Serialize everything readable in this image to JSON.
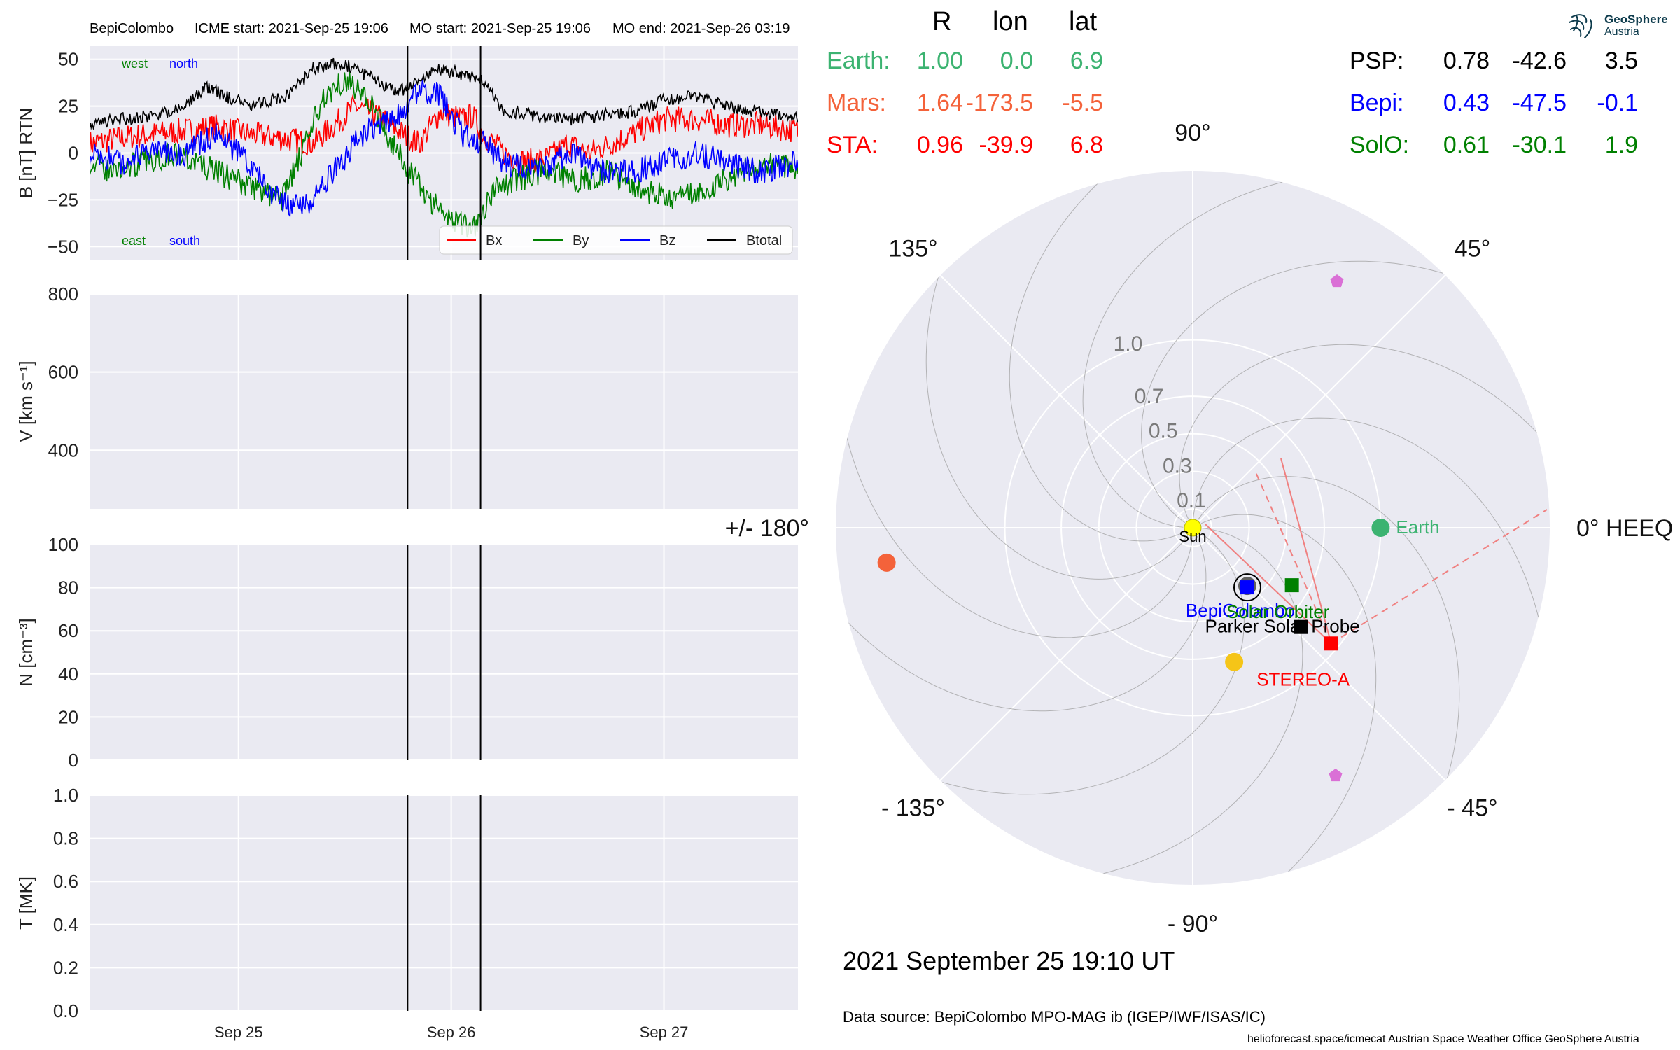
{
  "header": {
    "spacecraft": "BepiColombo",
    "icme_start": "ICME start: 2021-Sep-25 19:06",
    "mo_start": "MO start: 2021-Sep-25 19:06",
    "mo_end": "MO end: 2021-Sep-26 03:19"
  },
  "logo": {
    "line1": "GeoSphere",
    "line2": "Austria"
  },
  "position_table": {
    "headers": [
      "R",
      "lon",
      "lat"
    ],
    "left_rows": [
      {
        "name": "Earth:",
        "R": "1.00",
        "lon": "0.0",
        "lat": "6.9",
        "color": "#3cb371"
      },
      {
        "name": "Mars:",
        "R": "1.64",
        "lon": "-173.5",
        "lat": "-5.5",
        "color": "#f4623a"
      },
      {
        "name": "STA:",
        "R": "0.96",
        "lon": "-39.9",
        "lat": "6.8",
        "color": "#ff0000"
      }
    ],
    "right_rows": [
      {
        "name": "PSP:",
        "R": "0.78",
        "lon": "-42.6",
        "lat": "3.5",
        "color": "#000000"
      },
      {
        "name": "Bepi:",
        "R": "0.43",
        "lon": "-47.5",
        "lat": "-0.1",
        "color": "#0000ff"
      },
      {
        "name": "SolO:",
        "R": "0.61",
        "lon": "-30.1",
        "lat": "1.9",
        "color": "#008000"
      }
    ]
  },
  "timestamp": "2021 September 25  19:10 UT",
  "data_source": "Data source: BepiColombo MPO-MAG ib (IGEP/IWF/ISAS/IC)",
  "footer": {
    "credits": "helioforecast.space/icmecat   Austrian Space Weather Office   GeoSphere Austria"
  },
  "chart_data": [
    {
      "type": "line",
      "ylabel": "B [nT] RTN",
      "ylim": [
        -57,
        57
      ],
      "yticks": [
        50,
        25,
        0,
        -25,
        -50
      ],
      "ytick_labels": [
        "50",
        "25",
        "0",
        "−25",
        "−50"
      ],
      "xticks": [
        "Sep 25",
        "Sep 26",
        "Sep 27"
      ],
      "xtick_days": [
        25,
        26,
        27
      ],
      "xlim_days": [
        24.3,
        27.63
      ],
      "event_lines_days": [
        25.795,
        26.138
      ],
      "grid": true,
      "legend_position": "lower-right",
      "corner_labels": {
        "west": "west",
        "north": "north",
        "east": "east",
        "south": "south"
      },
      "series": [
        {
          "name": "Bx",
          "color": "#ff0000",
          "x_days": [
            24.3,
            24.45,
            24.6,
            24.75,
            24.9,
            25.05,
            25.2,
            25.35,
            25.45,
            25.55,
            25.65,
            25.75,
            25.85,
            25.95,
            26.05,
            26.1,
            26.15,
            26.25,
            26.35,
            26.45,
            26.55,
            26.65,
            26.75,
            26.85,
            27.0,
            27.15,
            27.3,
            27.45,
            27.63
          ],
          "values": [
            5,
            8,
            10,
            12,
            14,
            10,
            8,
            5,
            15,
            25,
            20,
            12,
            5,
            22,
            18,
            20,
            10,
            0,
            -5,
            -3,
            5,
            0,
            5,
            10,
            18,
            18,
            15,
            15,
            12
          ]
        },
        {
          "name": "By",
          "color": "#008000",
          "x_days": [
            24.3,
            24.4,
            24.55,
            24.7,
            24.85,
            25.0,
            25.1,
            25.2,
            25.3,
            25.4,
            25.5,
            25.6,
            25.7,
            25.8,
            25.9,
            26.0,
            26.1,
            26.2,
            26.3,
            26.4,
            26.5,
            26.6,
            26.75,
            26.9,
            27.05,
            27.2,
            27.35,
            27.5,
            27.63
          ],
          "values": [
            -5,
            -10,
            -5,
            0,
            -8,
            -15,
            -20,
            -25,
            0,
            30,
            40,
            30,
            10,
            -10,
            -25,
            -35,
            -40,
            -20,
            -15,
            -10,
            -12,
            -15,
            -10,
            -20,
            -25,
            -20,
            -10,
            -5,
            -8
          ]
        },
        {
          "name": "Bz",
          "color": "#0000ff",
          "x_days": [
            24.3,
            24.45,
            24.6,
            24.75,
            24.9,
            25.05,
            25.15,
            25.25,
            25.35,
            25.45,
            25.55,
            25.65,
            25.75,
            25.85,
            25.95,
            26.05,
            26.15,
            26.25,
            26.4,
            26.55,
            26.7,
            26.85,
            27.0,
            27.15,
            27.3,
            27.45,
            27.63
          ],
          "values": [
            0,
            -5,
            0,
            0,
            10,
            -5,
            -20,
            -30,
            -25,
            -10,
            5,
            15,
            20,
            35,
            30,
            10,
            5,
            -5,
            -10,
            0,
            -10,
            -10,
            -5,
            0,
            -5,
            -10,
            -5
          ]
        },
        {
          "name": "Btotal",
          "color": "#000000",
          "x_days": [
            24.3,
            24.45,
            24.6,
            24.75,
            24.85,
            24.95,
            25.05,
            25.15,
            25.25,
            25.35,
            25.45,
            25.55,
            25.65,
            25.75,
            25.85,
            25.95,
            26.05,
            26.15,
            26.25,
            26.4,
            26.55,
            26.7,
            26.85,
            27.0,
            27.15,
            27.3,
            27.45,
            27.63
          ],
          "values": [
            15,
            18,
            20,
            25,
            35,
            30,
            25,
            28,
            32,
            45,
            48,
            45,
            38,
            32,
            40,
            45,
            42,
            38,
            22,
            20,
            18,
            20,
            22,
            28,
            30,
            25,
            22,
            18
          ]
        }
      ]
    },
    {
      "type": "line",
      "ylabel": "V [km s⁻¹]",
      "ylim": [
        250,
        800
      ],
      "yticks": [
        800,
        600,
        400
      ],
      "ytick_labels": [
        "800",
        "600",
        "400"
      ],
      "xticks": [
        "Sep 25",
        "Sep 26",
        "Sep 27"
      ],
      "grid": true,
      "series": []
    },
    {
      "type": "line",
      "ylabel": "N [cm⁻³]",
      "ylim": [
        0,
        100
      ],
      "yticks": [
        100,
        80,
        60,
        40,
        20,
        0
      ],
      "ytick_labels": [
        "100",
        "80",
        "60",
        "40",
        "20",
        "0"
      ],
      "xticks": [
        "Sep 25",
        "Sep 26",
        "Sep 27"
      ],
      "grid": true,
      "series": []
    },
    {
      "type": "line",
      "ylabel": "T [MK]",
      "ylim": [
        0,
        1
      ],
      "yticks": [
        1.0,
        0.8,
        0.6,
        0.4,
        0.2,
        0.0
      ],
      "ytick_labels": [
        "1.0",
        "0.8",
        "0.6",
        "0.4",
        "0.2",
        "0.0"
      ],
      "xticks": [
        "Sep 25",
        "Sep 26",
        "Sep 27"
      ],
      "xtick_labels": [
        "Sep 25",
        "Sep 26",
        "Sep 27"
      ],
      "grid": true,
      "series": []
    },
    {
      "type": "scatter",
      "projection": "polar",
      "rmax": 1.9,
      "radial_ticks": [
        0.1,
        0.3,
        0.5,
        0.7,
        1.0
      ],
      "radial_tick_labels": [
        "0.1",
        "0.3",
        "0.5",
        "0.7",
        "1.0"
      ],
      "angle_labels": [
        {
          "deg": 0,
          "text": "0° HEEQ"
        },
        {
          "deg": 45,
          "text": "45°"
        },
        {
          "deg": 90,
          "text": "90°"
        },
        {
          "deg": 135,
          "text": "135°"
        },
        {
          "deg": 180,
          "text": "+/- 180°"
        },
        {
          "deg": -135,
          "text": "- 135°"
        },
        {
          "deg": -90,
          "text": "- 90°"
        },
        {
          "deg": -45,
          "text": "- 45°"
        }
      ],
      "bodies": [
        {
          "name": "Sun",
          "label": "Sun",
          "r": 0.0,
          "lon": 0.0,
          "marker": "circle",
          "color": "#ffff00",
          "label_color": "#000000"
        },
        {
          "name": "Earth",
          "label": "Earth",
          "r": 1.0,
          "lon": 0.0,
          "marker": "circle",
          "color": "#3cb371",
          "label_color": "#3cb371"
        },
        {
          "name": "BepiColombo",
          "label": "BepiColombo",
          "r": 0.43,
          "lon": -47.5,
          "marker": "square",
          "color": "#0000ff",
          "label_color": "#0000ff"
        },
        {
          "name": "Solar Orbiter",
          "label": "Solar Orbiter",
          "r": 0.61,
          "lon": -30.1,
          "marker": "square",
          "color": "#008000",
          "label_color": "#008000"
        },
        {
          "name": "Parker Solar Probe",
          "label": "Parker Solar Probe",
          "r": 0.78,
          "lon": -42.6,
          "marker": "square",
          "color": "#000000",
          "label_color": "#000000"
        },
        {
          "name": "STEREO-A",
          "label": "STEREO-A",
          "r": 0.96,
          "lon": -39.9,
          "marker": "square",
          "color": "#ff0000",
          "label_color": "#ff0000"
        },
        {
          "name": "Mars",
          "label": "",
          "r": 1.64,
          "lon": -173.5,
          "marker": "circle",
          "color": "#f4623a",
          "label_color": "#f4623a"
        }
      ]
    }
  ]
}
